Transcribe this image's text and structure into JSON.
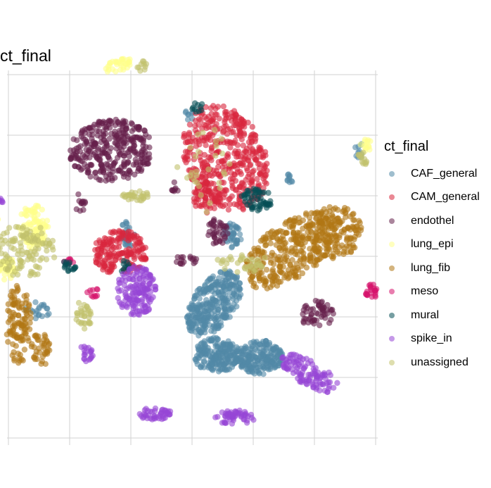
{
  "chart_data": {
    "type": "scatter",
    "title": "ct_final",
    "xlabel": "",
    "ylabel": "",
    "grid": true,
    "legend": {
      "title": "ct_final",
      "placement": "right",
      "entries": [
        {
          "name": "CAF_general",
          "color": "#5189a6"
        },
        {
          "name": "CAM_general",
          "color": "#d9263d"
        },
        {
          "name": "endothel",
          "color": "#65204b"
        },
        {
          "name": "lung_epi",
          "color": "#ffff8a"
        },
        {
          "name": "lung_fib",
          "color": "#b07614"
        },
        {
          "name": "meso",
          "color": "#d6136b"
        },
        {
          "name": "mural",
          "color": "#054f55"
        },
        {
          "name": "spike_in",
          "color": "#9646d5"
        },
        {
          "name": "unassigned",
          "color": "#c2c26c"
        }
      ]
    },
    "series": [
      {
        "name": "CAF_general",
        "color": "#5189a6",
        "clusters": [
          {
            "cx": 0.18,
            "cy": -0.38,
            "rx": 0.17,
            "ry": 0.3,
            "rot": -35,
            "n": 320
          },
          {
            "cx": 0.55,
            "cy": -0.82,
            "rx": 0.19,
            "ry": 0.14,
            "rot": 0,
            "n": 200
          },
          {
            "cx": 0.2,
            "cy": -0.8,
            "rx": 0.19,
            "ry": 0.14,
            "rot": 0,
            "n": 200
          },
          {
            "cx": -0.52,
            "cy": 0.18,
            "rx": 0.06,
            "ry": 0.11,
            "rot": 0,
            "n": 30
          },
          {
            "cx": 0.32,
            "cy": 0.15,
            "rx": 0.08,
            "ry": 0.12,
            "rot": 0,
            "n": 40
          },
          {
            "cx": 1.35,
            "cy": 0.86,
            "rx": 0.04,
            "ry": 0.06,
            "rot": 0,
            "n": 10
          },
          {
            "cx": 0.79,
            "cy": 0.64,
            "rx": 0.04,
            "ry": 0.04,
            "rot": 0,
            "n": 10
          },
          {
            "cx": -1.25,
            "cy": -0.45,
            "rx": 0.1,
            "ry": 0.08,
            "rot": 0,
            "n": 20
          },
          {
            "cx": -0.03,
            "cy": 1.15,
            "rx": 0.04,
            "ry": 0.07,
            "rot": 0,
            "n": 8
          }
        ]
      },
      {
        "name": "CAM_general",
        "color": "#d9263d",
        "clusters": [
          {
            "cx": 0.27,
            "cy": 0.8,
            "rx": 0.32,
            "ry": 0.45,
            "rot": 25,
            "n": 440
          },
          {
            "cx": -0.58,
            "cy": 0.03,
            "rx": 0.22,
            "ry": 0.18,
            "rot": 0,
            "n": 190
          },
          {
            "cx": 0.12,
            "cy": 0.48,
            "rx": 0.11,
            "ry": 0.13,
            "rot": 0,
            "n": 60
          }
        ]
      },
      {
        "name": "endothel",
        "color": "#65204b",
        "clusters": [
          {
            "cx": -0.65,
            "cy": 0.86,
            "rx": 0.34,
            "ry": 0.25,
            "rot": 5,
            "n": 330
          },
          {
            "cx": 0.2,
            "cy": 0.2,
            "rx": 0.09,
            "ry": 0.11,
            "rot": 0,
            "n": 40
          },
          {
            "cx": 1.01,
            "cy": -0.47,
            "rx": 0.14,
            "ry": 0.11,
            "rot": 0,
            "n": 55
          },
          {
            "cx": -0.9,
            "cy": 0.44,
            "rx": 0.05,
            "ry": 0.08,
            "rot": 0,
            "n": 12
          },
          {
            "cx": -0.05,
            "cy": -0.02,
            "rx": 0.1,
            "ry": 0.05,
            "rot": 0,
            "n": 16
          },
          {
            "cx": -0.12,
            "cy": 0.56,
            "rx": 0.06,
            "ry": 0.05,
            "rot": 0,
            "n": 8
          }
        ]
      },
      {
        "name": "lung_epi",
        "color": "#ffff8a",
        "clusters": [
          {
            "cx": -0.6,
            "cy": 1.55,
            "rx": 0.12,
            "ry": 0.05,
            "rot": 15,
            "n": 35
          },
          {
            "cx": -1.28,
            "cy": 0.24,
            "rx": 0.12,
            "ry": 0.18,
            "rot": 0,
            "n": 100
          },
          {
            "cx": -1.5,
            "cy": -0.1,
            "rx": 0.08,
            "ry": 0.1,
            "rot": 0,
            "n": 35
          },
          {
            "cx": -1.6,
            "cy": 0.28,
            "rx": 0.05,
            "ry": 0.05,
            "rot": 0,
            "n": 12
          },
          {
            "cx": 1.4,
            "cy": 0.9,
            "rx": 0.06,
            "ry": 0.05,
            "rot": 0,
            "n": 14
          }
        ]
      },
      {
        "name": "lung_fib",
        "color": "#b07614",
        "clusters": [
          {
            "cx": 0.8,
            "cy": 0.05,
            "rx": 0.22,
            "ry": 0.45,
            "rot": -55,
            "n": 330
          },
          {
            "cx": 1.15,
            "cy": 0.2,
            "rx": 0.22,
            "ry": 0.22,
            "rot": 0,
            "n": 150
          },
          {
            "cx": -1.4,
            "cy": -0.55,
            "rx": 0.1,
            "ry": 0.32,
            "rot": 0,
            "n": 110
          },
          {
            "cx": -1.22,
            "cy": -0.75,
            "rx": 0.08,
            "ry": 0.14,
            "rot": 0,
            "n": 40
          }
        ]
      },
      {
        "name": "meso",
        "color": "#d6136b",
        "clusters": [
          {
            "cx": 1.45,
            "cy": -0.28,
            "rx": 0.05,
            "ry": 0.07,
            "rot": 0,
            "n": 22
          },
          {
            "cx": -1.0,
            "cy": -0.05,
            "rx": 0.06,
            "ry": 0.03,
            "rot": 0,
            "n": 10
          },
          {
            "cx": -0.8,
            "cy": -0.3,
            "rx": 0.06,
            "ry": 0.04,
            "rot": 0,
            "n": 10
          }
        ]
      },
      {
        "name": "mural",
        "color": "#054f55",
        "clusters": [
          {
            "cx": 0.52,
            "cy": 0.46,
            "rx": 0.13,
            "ry": 0.09,
            "rot": 0,
            "n": 55
          },
          {
            "cx": -1.0,
            "cy": -0.08,
            "rx": 0.06,
            "ry": 0.05,
            "rot": 0,
            "n": 16
          },
          {
            "cx": 0.05,
            "cy": 1.2,
            "rx": 0.05,
            "ry": 0.05,
            "rot": 0,
            "n": 10
          },
          {
            "cx": -0.55,
            "cy": -0.08,
            "rx": 0.05,
            "ry": 0.05,
            "rot": 0,
            "n": 10
          }
        ]
      },
      {
        "name": "spike_in",
        "color": "#9646d5",
        "clusters": [
          {
            "cx": -0.45,
            "cy": -0.28,
            "rx": 0.16,
            "ry": 0.2,
            "rot": 0,
            "n": 150
          },
          {
            "cx": 0.95,
            "cy": -0.95,
            "rx": 0.1,
            "ry": 0.26,
            "rot": 60,
            "n": 110
          },
          {
            "cx": -0.3,
            "cy": -1.28,
            "rx": 0.14,
            "ry": 0.05,
            "rot": 0,
            "n": 45
          },
          {
            "cx": 0.35,
            "cy": -1.31,
            "rx": 0.17,
            "ry": 0.06,
            "rot": 0,
            "n": 55
          },
          {
            "cx": -0.85,
            "cy": -0.78,
            "rx": 0.06,
            "ry": 0.08,
            "rot": 0,
            "n": 20
          },
          {
            "cx": -1.55,
            "cy": 0.45,
            "rx": 0.04,
            "ry": 0.03,
            "rot": 0,
            "n": 6
          }
        ]
      },
      {
        "name": "unassigned",
        "color": "#c2c26c",
        "clusters": [
          {
            "cx": -1.35,
            "cy": 0.05,
            "rx": 0.25,
            "ry": 0.22,
            "rot": 0,
            "n": 120
          },
          {
            "cx": 1.38,
            "cy": 0.8,
            "rx": 0.05,
            "ry": 0.06,
            "rot": 0,
            "n": 14
          },
          {
            "cx": -0.45,
            "cy": 0.49,
            "rx": 0.12,
            "ry": 0.04,
            "rot": 0,
            "n": 30
          },
          {
            "cx": -0.88,
            "cy": -0.48,
            "rx": 0.07,
            "ry": 0.12,
            "rot": 0,
            "n": 32
          },
          {
            "cx": 0.4,
            "cy": -0.05,
            "rx": 0.22,
            "ry": 0.08,
            "rot": 0,
            "n": 35
          },
          {
            "cx": 0.1,
            "cy": 0.7,
            "rx": 0.25,
            "ry": 0.35,
            "rot": 0,
            "n": 30
          },
          {
            "cx": -0.4,
            "cy": 1.55,
            "rx": 0.06,
            "ry": 0.05,
            "rot": 0,
            "n": 10
          }
        ]
      }
    ]
  }
}
